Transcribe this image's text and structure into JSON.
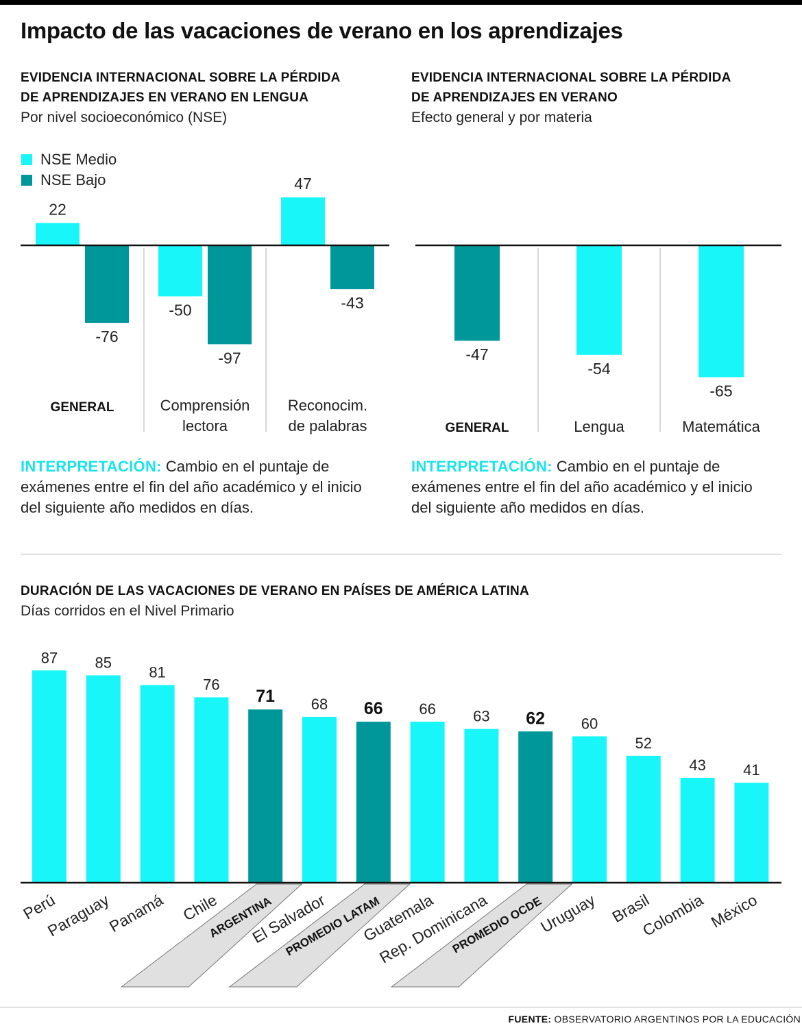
{
  "page": {
    "title": "Impacto de las vacaciones de verano en los aprendizajes",
    "source_label": "FUENTE:",
    "source_text": "OBSERVATORIO ARGENTINOS POR LA EDUCACIÓN"
  },
  "colors": {
    "nse_medio": "#19f6fa",
    "nse_bajo": "#00979a",
    "highlight_band": "#e0e0e0",
    "accent_text": "#19e4ea"
  },
  "chart1": {
    "heading_line1": "EVIDENCIA INTERNACIONAL SOBRE LA PÉRDIDA",
    "heading_line2": "DE APRENDIZAJES EN VERANO EN LENGUA",
    "subtitle": "Por nivel socioeconómico (NSE)",
    "legend": [
      "NSE Medio",
      "NSE Bajo"
    ],
    "interp_label": "INTERPRETACIÓN:",
    "interp_text": " Cambio en el puntaje de exámenes entre el fin del año académico y el inicio del siguiente año medidos en días."
  },
  "chart2": {
    "heading_line1": "EVIDENCIA INTERNACIONAL SOBRE LA PÉRDIDA",
    "heading_line2": "DE APRENDIZAJES EN VERANO",
    "subtitle": "Efecto general y por materia",
    "interp_label": "INTERPRETACIÓN:",
    "interp_text": " Cambio en el puntaje de exámenes entre el fin del año académico y el inicio del siguiente año medidos en días."
  },
  "chart3": {
    "heading": "DURACIÓN DE LAS VACACIONES DE VERANO EN PAÍSES DE AMÉRICA LATINA",
    "subtitle": "Días corridos en el Nivel Primario"
  },
  "chart_data": [
    {
      "type": "bar",
      "title": "EVIDENCIA INTERNACIONAL SOBRE LA PÉRDIDA DE APRENDIZAJES EN VERANO EN LENGUA",
      "subtitle": "Por nivel socioeconómico (NSE)",
      "categories": [
        {
          "lines": [
            "GENERAL"
          ],
          "bold": true
        },
        {
          "lines": [
            "Comprensión",
            "lectora"
          ],
          "bold": false
        },
        {
          "lines": [
            "Reconocim.",
            "de palabras"
          ],
          "bold": false
        }
      ],
      "series": [
        {
          "name": "NSE Medio",
          "values": [
            22,
            -50,
            47
          ]
        },
        {
          "name": "NSE Bajo",
          "values": [
            -76,
            -97,
            -43
          ]
        }
      ],
      "ylim": [
        -100,
        50
      ],
      "legend_position": "top-left",
      "grid": false
    },
    {
      "type": "bar",
      "title": "EVIDENCIA INTERNACIONAL SOBRE LA PÉRDIDA DE APRENDIZAJES EN VERANO",
      "subtitle": "Efecto general y por materia",
      "categories": [
        {
          "lines": [
            "GENERAL"
          ],
          "bold": true
        },
        {
          "lines": [
            "Lengua"
          ],
          "bold": false
        },
        {
          "lines": [
            "Matemática"
          ],
          "bold": false
        }
      ],
      "values": [
        -47,
        -54,
        -65
      ],
      "series_index": [
        1,
        0,
        0
      ],
      "ylim": [
        -100,
        50
      ],
      "grid": false
    },
    {
      "type": "bar",
      "title": "DURACIÓN DE LAS VACACIONES DE VERANO EN PAÍSES DE AMÉRICA LATINA",
      "subtitle": "Días corridos en el Nivel Primario",
      "categories": [
        "Perú",
        "Paraguay",
        "Panamá",
        "Chile",
        "ARGENTINA",
        "El Salvador",
        "PROMEDIO LATAM",
        "Guatemala",
        "Rep. Dominicana",
        "PROMEDIO OCDE",
        "Uruguay",
        "Brasil",
        "Colombia",
        "México"
      ],
      "values": [
        87,
        85,
        81,
        76,
        71,
        68,
        66,
        66,
        63,
        62,
        60,
        52,
        43,
        41
      ],
      "highlighted": [
        false,
        false,
        false,
        false,
        true,
        false,
        true,
        false,
        false,
        true,
        false,
        false,
        false,
        false
      ],
      "ylim": [
        0,
        88
      ],
      "grid": false
    }
  ]
}
